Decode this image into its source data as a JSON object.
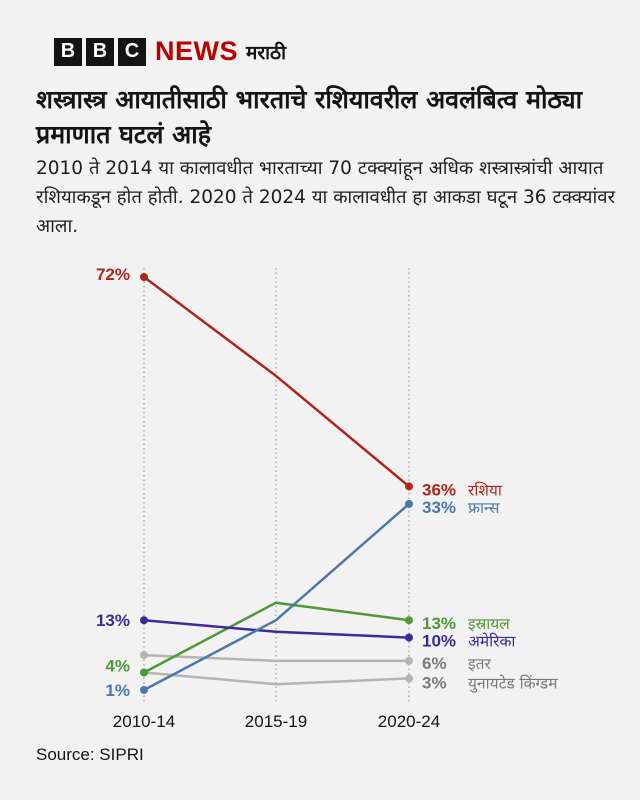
{
  "brand": {
    "letters": [
      "B",
      "B",
      "C"
    ],
    "news": "NEWS",
    "language": "मराठी",
    "accent": "#b80000"
  },
  "title": "शस्त्रास्त्र आयातीसाठी भारताचे रशियावरील अवलंबित्व मोठ्या प्रमाणात घटलं आहे",
  "subtitle": "2010 ते 2014 या कालावधीत भारताच्या 70 टक्क्यांहून अधिक शस्त्रास्त्रांची आयात रशियाकडून होत होती. 2020 ते 2024 या कालावधीत हा आकडा घटून 36 टक्क्यांवर आला.",
  "source": "Source: SIPRI",
  "chart_data": {
    "type": "line",
    "categories": [
      "2010-14",
      "2015-19",
      "2020-24"
    ],
    "grid": "vertical dotted lines at each period",
    "series": [
      {
        "name": "रशिया",
        "values": [
          72,
          55,
          36
        ],
        "color": "#b0261c",
        "start_label": "72%",
        "end_label": "36%"
      },
      {
        "name": "फ्रान्स",
        "values": [
          1,
          13,
          33
        ],
        "color": "#4a78ad",
        "start_label": "1%",
        "end_label": "33%"
      },
      {
        "name": "इस्रायल",
        "values": [
          4,
          16,
          13
        ],
        "color": "#4d9a36",
        "start_label": "4%",
        "end_label": "13%"
      },
      {
        "name": "अमेरिका",
        "values": [
          13,
          11,
          10
        ],
        "color": "#3b2a9a",
        "start_label": "13%",
        "end_label": "10%"
      },
      {
        "name": "इतर",
        "values": [
          7,
          6,
          6
        ],
        "color": "#b4b4b4",
        "label_color": "#7a7a7a",
        "start_label": "",
        "end_label": "6%"
      },
      {
        "name": "युनायटेड किंग्डम",
        "values": [
          4,
          2,
          3
        ],
        "color": "#b4b4b4",
        "label_color": "#7a7a7a",
        "start_label": "",
        "end_label": "3%"
      }
    ]
  }
}
